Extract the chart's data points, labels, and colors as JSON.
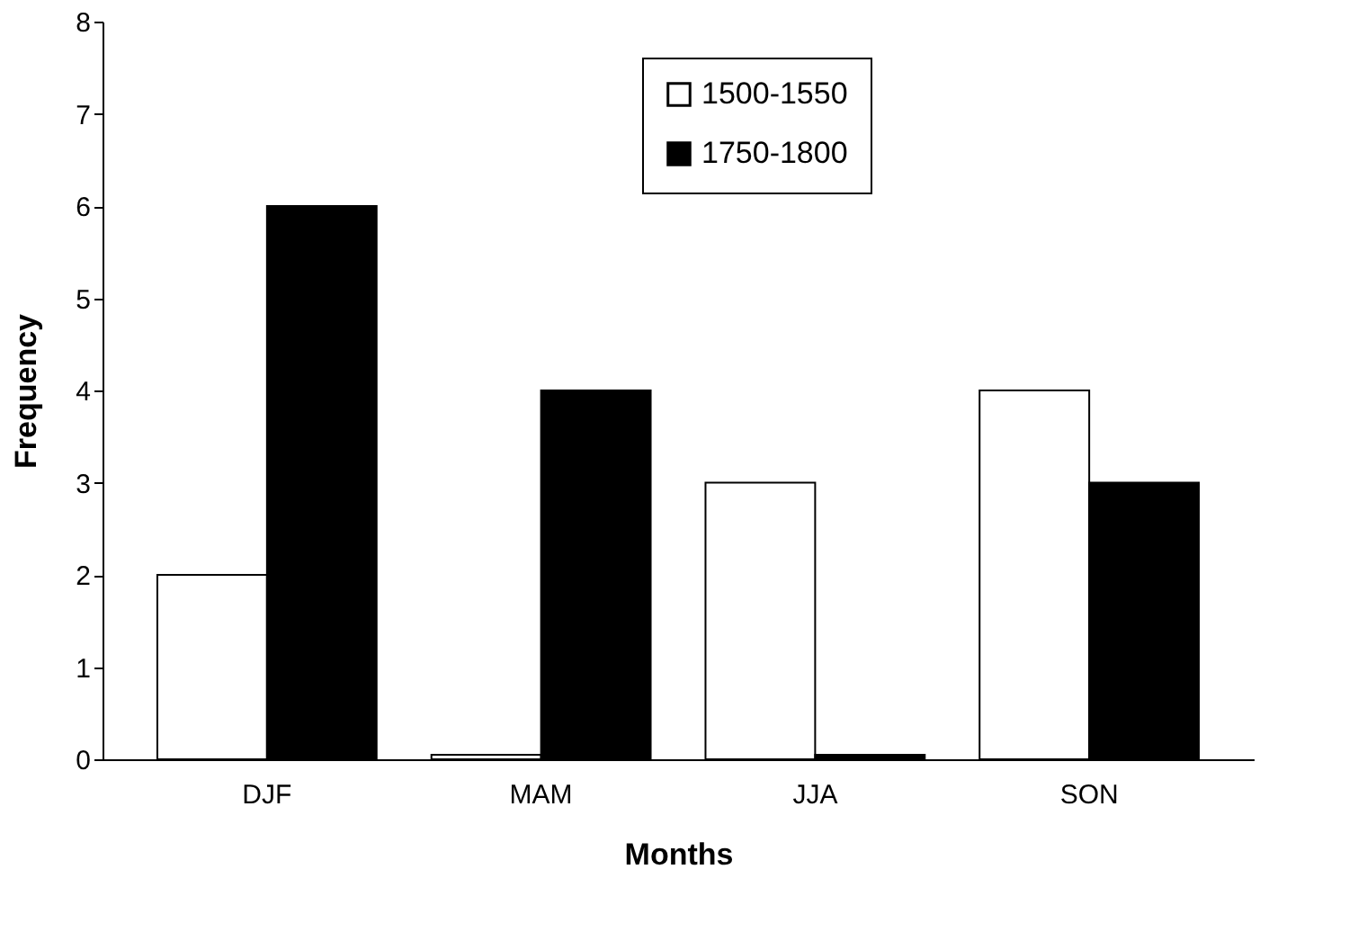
{
  "chart_data": {
    "type": "bar",
    "xlabel": "Months",
    "ylabel": "Frequency",
    "categories": [
      "DJF",
      "MAM",
      "JJA",
      "SON"
    ],
    "series": [
      {
        "name": "1500-1550",
        "color": "#ffffff",
        "values": [
          2,
          0.05,
          3,
          4
        ]
      },
      {
        "name": "1750-1800",
        "color": "#000000",
        "values": [
          6,
          4,
          0.05,
          3
        ]
      }
    ],
    "ylim": [
      0,
      8
    ],
    "yticks": [
      0,
      1,
      2,
      3,
      4,
      5,
      6,
      7,
      8
    ],
    "grid": false,
    "legend": "top right"
  }
}
